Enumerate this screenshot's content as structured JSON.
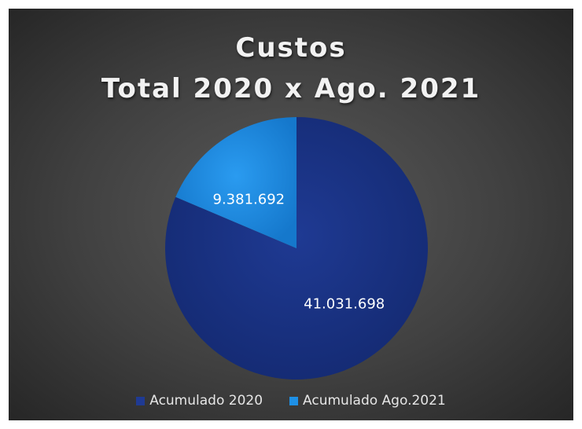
{
  "chart_data": {
    "type": "pie",
    "title": [
      "Custos",
      "Total 2020 x Ago. 2021"
    ],
    "categories": [
      "Acumulado 2020",
      "Acumulado Ago.2021"
    ],
    "values": [
      41031698,
      9381692
    ],
    "data_labels": [
      "41.031.698",
      "9.381.692"
    ],
    "colors": [
      "#1f3a93",
      "#1e90e6"
    ],
    "legend_position": "bottom"
  }
}
